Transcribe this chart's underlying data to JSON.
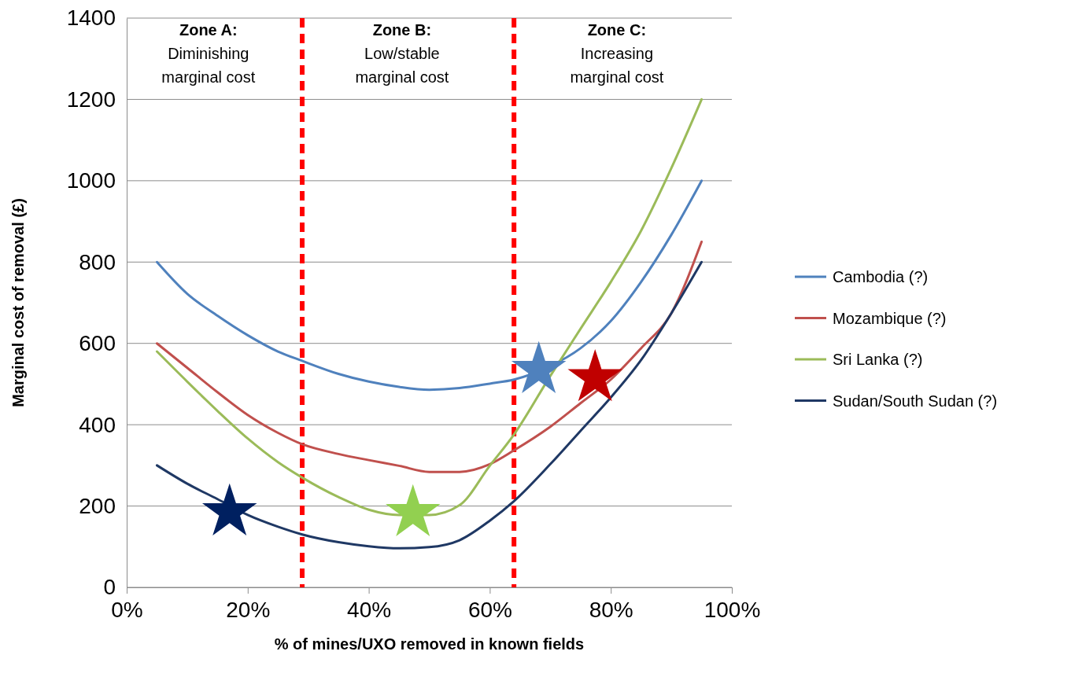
{
  "chart_data": {
    "type": "line",
    "xlabel": "% of mines/UXO removed in known fields",
    "ylabel": "Marginal cost of removal (£)",
    "xlim": [
      0,
      100
    ],
    "xticks": [
      {
        "value": 0,
        "label": "0%"
      },
      {
        "value": 20,
        "label": "20%"
      },
      {
        "value": 40,
        "label": "40%"
      },
      {
        "value": 60,
        "label": "60%"
      },
      {
        "value": 80,
        "label": "80%"
      },
      {
        "value": 100,
        "label": "100%"
      }
    ],
    "ylim": [
      0,
      1400
    ],
    "yticks": [
      0,
      200,
      400,
      600,
      800,
      1000,
      1200,
      1400
    ],
    "grid": "y",
    "legend": "right",
    "line_style": "solid",
    "series": [
      {
        "name": "Cambodia (?)",
        "color": "#4f81bd",
        "x": [
          5,
          10,
          15,
          20,
          25,
          29,
          35,
          40,
          45,
          50,
          55,
          60,
          64,
          70,
          75,
          80,
          85,
          90,
          95
        ],
        "values": [
          800,
          722,
          668,
          620,
          580,
          557,
          525,
          506,
          493,
          486,
          490,
          501,
          511,
          544,
          588,
          655,
          751,
          867,
          1000
        ]
      },
      {
        "name": "Mozambique (?)",
        "color": "#c0504d",
        "x": [
          5,
          10,
          15,
          20,
          25,
          29,
          35,
          40,
          45,
          50,
          55,
          60,
          64,
          70,
          75,
          80,
          85,
          90,
          95
        ],
        "values": [
          600,
          540,
          480,
          424,
          380,
          352,
          328,
          313,
          299,
          284,
          284,
          303,
          337,
          395,
          453,
          511,
          588,
          674,
          850
        ]
      },
      {
        "name": "Sri Lanka (?)",
        "color": "#9bbb59",
        "x": [
          5,
          10,
          15,
          20,
          25,
          29,
          35,
          40,
          45,
          50,
          55,
          60,
          64,
          70,
          75,
          80,
          85,
          90,
          95
        ],
        "values": [
          580,
          506,
          434,
          366,
          308,
          270,
          222,
          191,
          178,
          178,
          202,
          299,
          376,
          520,
          636,
          751,
          877,
          1031,
          1200
        ]
      },
      {
        "name": "Sudan/South Sudan (?)",
        "color": "#1f3864",
        "x": [
          5,
          10,
          15,
          20,
          25,
          29,
          35,
          40,
          45,
          50,
          55,
          60,
          64,
          70,
          75,
          80,
          85,
          90,
          95
        ],
        "values": [
          300,
          255,
          217,
          178,
          149,
          130,
          111,
          101,
          96,
          99,
          116,
          164,
          212,
          303,
          385,
          467,
          559,
          674,
          800
        ]
      },
      {
        "type": "scatter",
        "marker": "star",
        "color": "#002060",
        "x": [
          17
        ],
        "values": [
          185
        ]
      },
      {
        "type": "scatter",
        "marker": "star",
        "color": "#92d050",
        "x": [
          47.3
        ],
        "values": [
          183
        ]
      },
      {
        "type": "scatter",
        "marker": "star",
        "color": "#4f81bd",
        "x": [
          68.1
        ],
        "values": [
          535
        ]
      },
      {
        "type": "scatter",
        "marker": "star",
        "color": "#c00000",
        "x": [
          77.4
        ],
        "values": [
          515
        ]
      }
    ],
    "ref_lines": [
      {
        "axis": "x",
        "value": 29,
        "color": "#ff0000",
        "line_style": "dashed"
      },
      {
        "axis": "x",
        "value": 64,
        "color": "#ff0000",
        "line_style": "dashed"
      }
    ],
    "annotations": [
      "Zone A:\nDiminishing\nmarginal cost",
      "Zone B:\nLow/stable\nmarginal cost",
      "Zone C:\nIncreasing\nmarginal cost"
    ]
  }
}
